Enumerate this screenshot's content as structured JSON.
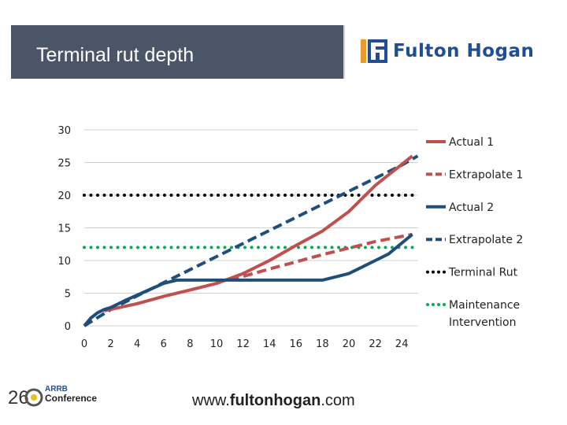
{
  "header": {
    "title": "Terminal rut depth",
    "logo_text": "Fulton Hogan",
    "bar_color": "#4a5568",
    "brand_color": "#1f4e96",
    "logo_accent": "#e89a2c"
  },
  "footer": {
    "url_prefix": "www.",
    "url_bold": "fultonhogan",
    "url_suffix": ".com",
    "conference_num": "26",
    "conference_org": "ARRB",
    "conference_name": "Conference"
  },
  "chart_data": {
    "type": "line",
    "xlim": [
      0,
      25
    ],
    "ylim": [
      0,
      30
    ],
    "xticks": [
      0,
      2,
      4,
      6,
      8,
      10,
      12,
      14,
      16,
      18,
      20,
      22,
      24
    ],
    "yticks": [
      0,
      5,
      10,
      15,
      20,
      25,
      30
    ],
    "grid": "y",
    "legend_position": "right",
    "series": [
      {
        "name": "Actual 1",
        "color": "#c0504d",
        "dash": "solid",
        "x": [
          1.5,
          4,
          6,
          8,
          10,
          12,
          14,
          16,
          18,
          20,
          22,
          24.8
        ],
        "y": [
          2.3,
          3.4,
          4.5,
          5.5,
          6.5,
          8,
          10,
          12.3,
          14.5,
          17.5,
          21.5,
          26
        ]
      },
      {
        "name": "Extrapolate 1",
        "color": "#c0504d",
        "dash": "dashed",
        "x": [
          11,
          14,
          16,
          18,
          20,
          22,
          24.8
        ],
        "y": [
          7,
          8.7,
          9.8,
          10.9,
          11.9,
          12.9,
          14
        ]
      },
      {
        "name": "Actual 2",
        "color": "#1f4e79",
        "dash": "solid",
        "x": [
          0,
          0.5,
          1,
          1.5,
          2,
          3,
          4,
          5,
          6,
          7,
          8,
          10,
          12,
          14,
          16,
          17,
          18,
          19,
          20,
          21,
          22,
          23,
          24.8
        ],
        "y": [
          0,
          1.2,
          2,
          2.5,
          2.8,
          3.8,
          4.7,
          5.6,
          6.5,
          7,
          7,
          7,
          7,
          7,
          7,
          7,
          7,
          7.5,
          8,
          9,
          10,
          11,
          14
        ]
      },
      {
        "name": "Extrapolate 2",
        "color": "#1f4e79",
        "dash": "dashed",
        "x": [
          0,
          2,
          4,
          6,
          8,
          10,
          12,
          14,
          16,
          18,
          20,
          22,
          24,
          25.2
        ],
        "y": [
          0,
          2.5,
          4.6,
          6.6,
          8.6,
          10.6,
          12.6,
          14.6,
          16.6,
          18.6,
          20.6,
          22.6,
          24.6,
          26
        ]
      },
      {
        "name": "Terminal Rut",
        "color": "#000000",
        "dash": "dotted",
        "x": [
          0,
          25.2
        ],
        "y": [
          20,
          20
        ]
      },
      {
        "name": "Maintenance Intervention",
        "color": "#00b050",
        "dash": "dotted",
        "x": [
          0,
          25.2
        ],
        "y": [
          12,
          12
        ]
      }
    ]
  }
}
